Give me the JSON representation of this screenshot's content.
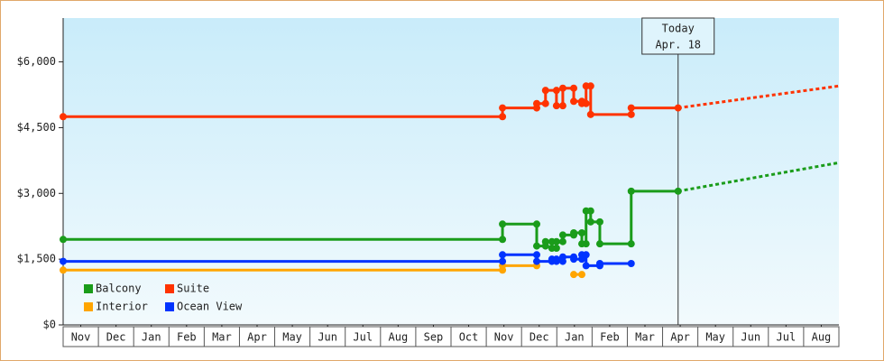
{
  "chart_data": {
    "type": "step-line",
    "xlim": [
      0,
      22
    ],
    "xticks": [
      {
        "value": 0.5,
        "label": "Nov"
      },
      {
        "value": 1.5,
        "label": "Dec"
      },
      {
        "value": 2.5,
        "label": "Jan"
      },
      {
        "value": 3.5,
        "label": "Feb"
      },
      {
        "value": 4.5,
        "label": "Mar"
      },
      {
        "value": 5.5,
        "label": "Apr"
      },
      {
        "value": 6.5,
        "label": "May"
      },
      {
        "value": 7.5,
        "label": "Jun"
      },
      {
        "value": 8.5,
        "label": "Jul"
      },
      {
        "value": 9.5,
        "label": "Aug"
      },
      {
        "value": 10.5,
        "label": "Sep"
      },
      {
        "value": 11.5,
        "label": "Oct"
      },
      {
        "value": 12.5,
        "label": "Nov"
      },
      {
        "value": 13.5,
        "label": "Dec"
      },
      {
        "value": 14.5,
        "label": "Jan"
      },
      {
        "value": 15.5,
        "label": "Feb"
      },
      {
        "value": 16.5,
        "label": "Mar"
      },
      {
        "value": 17.5,
        "label": "Apr"
      },
      {
        "value": 18.5,
        "label": "May"
      },
      {
        "value": 19.5,
        "label": "Jun"
      },
      {
        "value": 20.5,
        "label": "Jul"
      },
      {
        "value": 21.5,
        "label": "Aug"
      }
    ],
    "ylim": [
      0,
      7000
    ],
    "yticks": [
      {
        "value": 0,
        "label": "$0"
      },
      {
        "value": 1500,
        "label": "$1,500"
      },
      {
        "value": 3000,
        "label": "$3,000"
      },
      {
        "value": 4500,
        "label": "$4,500"
      },
      {
        "value": 6000,
        "label": "$6,000"
      }
    ],
    "annotation": {
      "x": 17.44,
      "lines": [
        "Today",
        "Apr. 18"
      ]
    },
    "series": [
      {
        "name": "Balcony",
        "color": "#1a9c1a",
        "x": [
          0,
          12.46,
          12.46,
          13.43,
          13.43,
          13.68,
          13.68,
          13.86,
          13.86,
          13.99,
          13.99,
          14.17,
          14.17,
          14.48,
          14.48,
          14.71,
          14.71,
          14.83,
          14.83,
          14.96,
          14.96,
          15.22,
          15.22,
          16.11,
          16.11,
          17.44
        ],
        "values": [
          1950,
          1950,
          2300,
          2300,
          1800,
          1800,
          1900,
          1900,
          1750,
          1750,
          1900,
          1900,
          2050,
          2050,
          2100,
          2100,
          1850,
          1850,
          2600,
          2600,
          2350,
          2350,
          1850,
          1850,
          3050,
          3050
        ],
        "projection": {
          "x": [
            17.44,
            22
          ],
          "values": [
            3050,
            3700
          ]
        }
      },
      {
        "name": "Suite",
        "color": "#ff3300",
        "x": [
          0,
          12.46,
          12.46,
          13.43,
          13.43,
          13.68,
          13.68,
          13.99,
          13.99,
          14.17,
          14.17,
          14.48,
          14.48,
          14.71,
          14.71,
          14.83,
          14.83,
          14.96,
          14.96,
          16.11,
          16.11,
          17.44
        ],
        "values": [
          4750,
          4750,
          4950,
          4950,
          5050,
          5050,
          5350,
          5350,
          5000,
          5000,
          5400,
          5400,
          5100,
          5100,
          5050,
          5050,
          5450,
          5450,
          4800,
          4800,
          4950,
          4950
        ],
        "projection": {
          "x": [
            17.44,
            22
          ],
          "values": [
            4950,
            5450
          ]
        }
      },
      {
        "name": "Interior",
        "color": "#ffa500",
        "x": [
          0,
          12.46,
          12.46,
          13.43,
          null,
          14.48,
          14.71
        ],
        "values": [
          1250,
          1250,
          1350,
          1350,
          null,
          1150,
          1150
        ]
      },
      {
        "name": "Ocean View",
        "color": "#0033ff",
        "x": [
          0,
          12.46,
          12.46,
          13.43,
          13.43,
          13.86,
          13.86,
          13.99,
          13.99,
          14.17,
          14.17,
          14.48,
          14.48,
          14.71,
          14.71,
          14.83,
          14.83,
          15.22,
          15.22,
          16.11
        ],
        "values": [
          1450,
          1450,
          1600,
          1600,
          1450,
          1450,
          1500,
          1500,
          1450,
          1450,
          1550,
          1550,
          1500,
          1500,
          1600,
          1600,
          1350,
          1350,
          1400,
          1400
        ]
      }
    ]
  }
}
